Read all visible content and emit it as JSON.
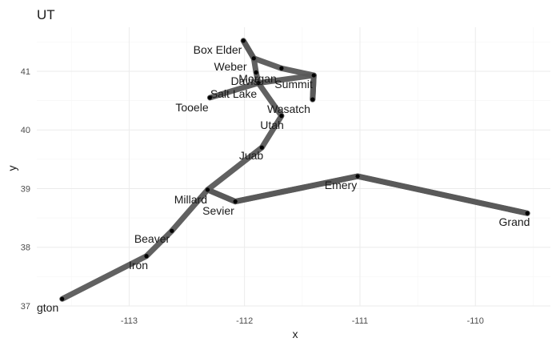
{
  "chart_data": {
    "type": "line",
    "title": "UT",
    "xlabel": "x",
    "ylabel": "y",
    "xlim": [
      -113.8,
      -109.35
    ],
    "ylim": [
      37.0,
      41.75
    ],
    "x_ticks": [
      -113,
      -112,
      -111,
      -110
    ],
    "y_ticks": [
      37,
      38,
      39,
      40,
      41
    ],
    "x_tick_labels": [
      "-113",
      "-112",
      "-111",
      "-110"
    ],
    "y_tick_labels": [
      "37",
      "38",
      "39",
      "40",
      "41"
    ],
    "grid": true,
    "line_color": "#595959",
    "point_color": "#000000",
    "points": [
      {
        "label": "Washington",
        "display": "gton",
        "x": -113.58,
        "y": 37.12
      },
      {
        "label": "Iron",
        "x": -112.85,
        "y": 37.85
      },
      {
        "label": "Beaver",
        "x": -112.63,
        "y": 38.28
      },
      {
        "label": "Millard",
        "x": -112.32,
        "y": 38.98
      },
      {
        "label": "Sevier",
        "x": -112.08,
        "y": 38.78
      },
      {
        "label": "Emery",
        "x": -111.02,
        "y": 39.21
      },
      {
        "label": "Grand",
        "x": -109.55,
        "y": 38.58
      },
      {
        "label": "Juab",
        "x": -111.85,
        "y": 39.7
      },
      {
        "label": "Utah",
        "x": -111.68,
        "y": 40.24
      },
      {
        "label": "Wasatch",
        "x": -111.41,
        "y": 40.52
      },
      {
        "label": "Summit",
        "x": -111.4,
        "y": 40.93
      },
      {
        "label": "Morgan",
        "x": -111.68,
        "y": 41.05
      },
      {
        "label": "Davis",
        "x": -111.9,
        "y": 40.98
      },
      {
        "label": "Weber",
        "x": -111.92,
        "y": 41.22
      },
      {
        "label": "Box Elder",
        "x": -112.01,
        "y": 41.52
      },
      {
        "label": "Salt Lake",
        "x": -111.88,
        "y": 40.8
      },
      {
        "label": "Tooele",
        "x": -112.3,
        "y": 40.55
      }
    ],
    "path": [
      "Washington",
      "Iron",
      "Beaver",
      "Millard",
      "Sevier",
      "Emery",
      "Grand",
      "Emery",
      "Sevier",
      "Millard",
      "Juab",
      "Utah",
      "Salt Lake",
      "Davis",
      "Weber",
      "Box Elder",
      "Weber",
      "Morgan",
      "Summit",
      "Wasatch",
      "Summit",
      "Salt Lake",
      "Tooele"
    ]
  }
}
